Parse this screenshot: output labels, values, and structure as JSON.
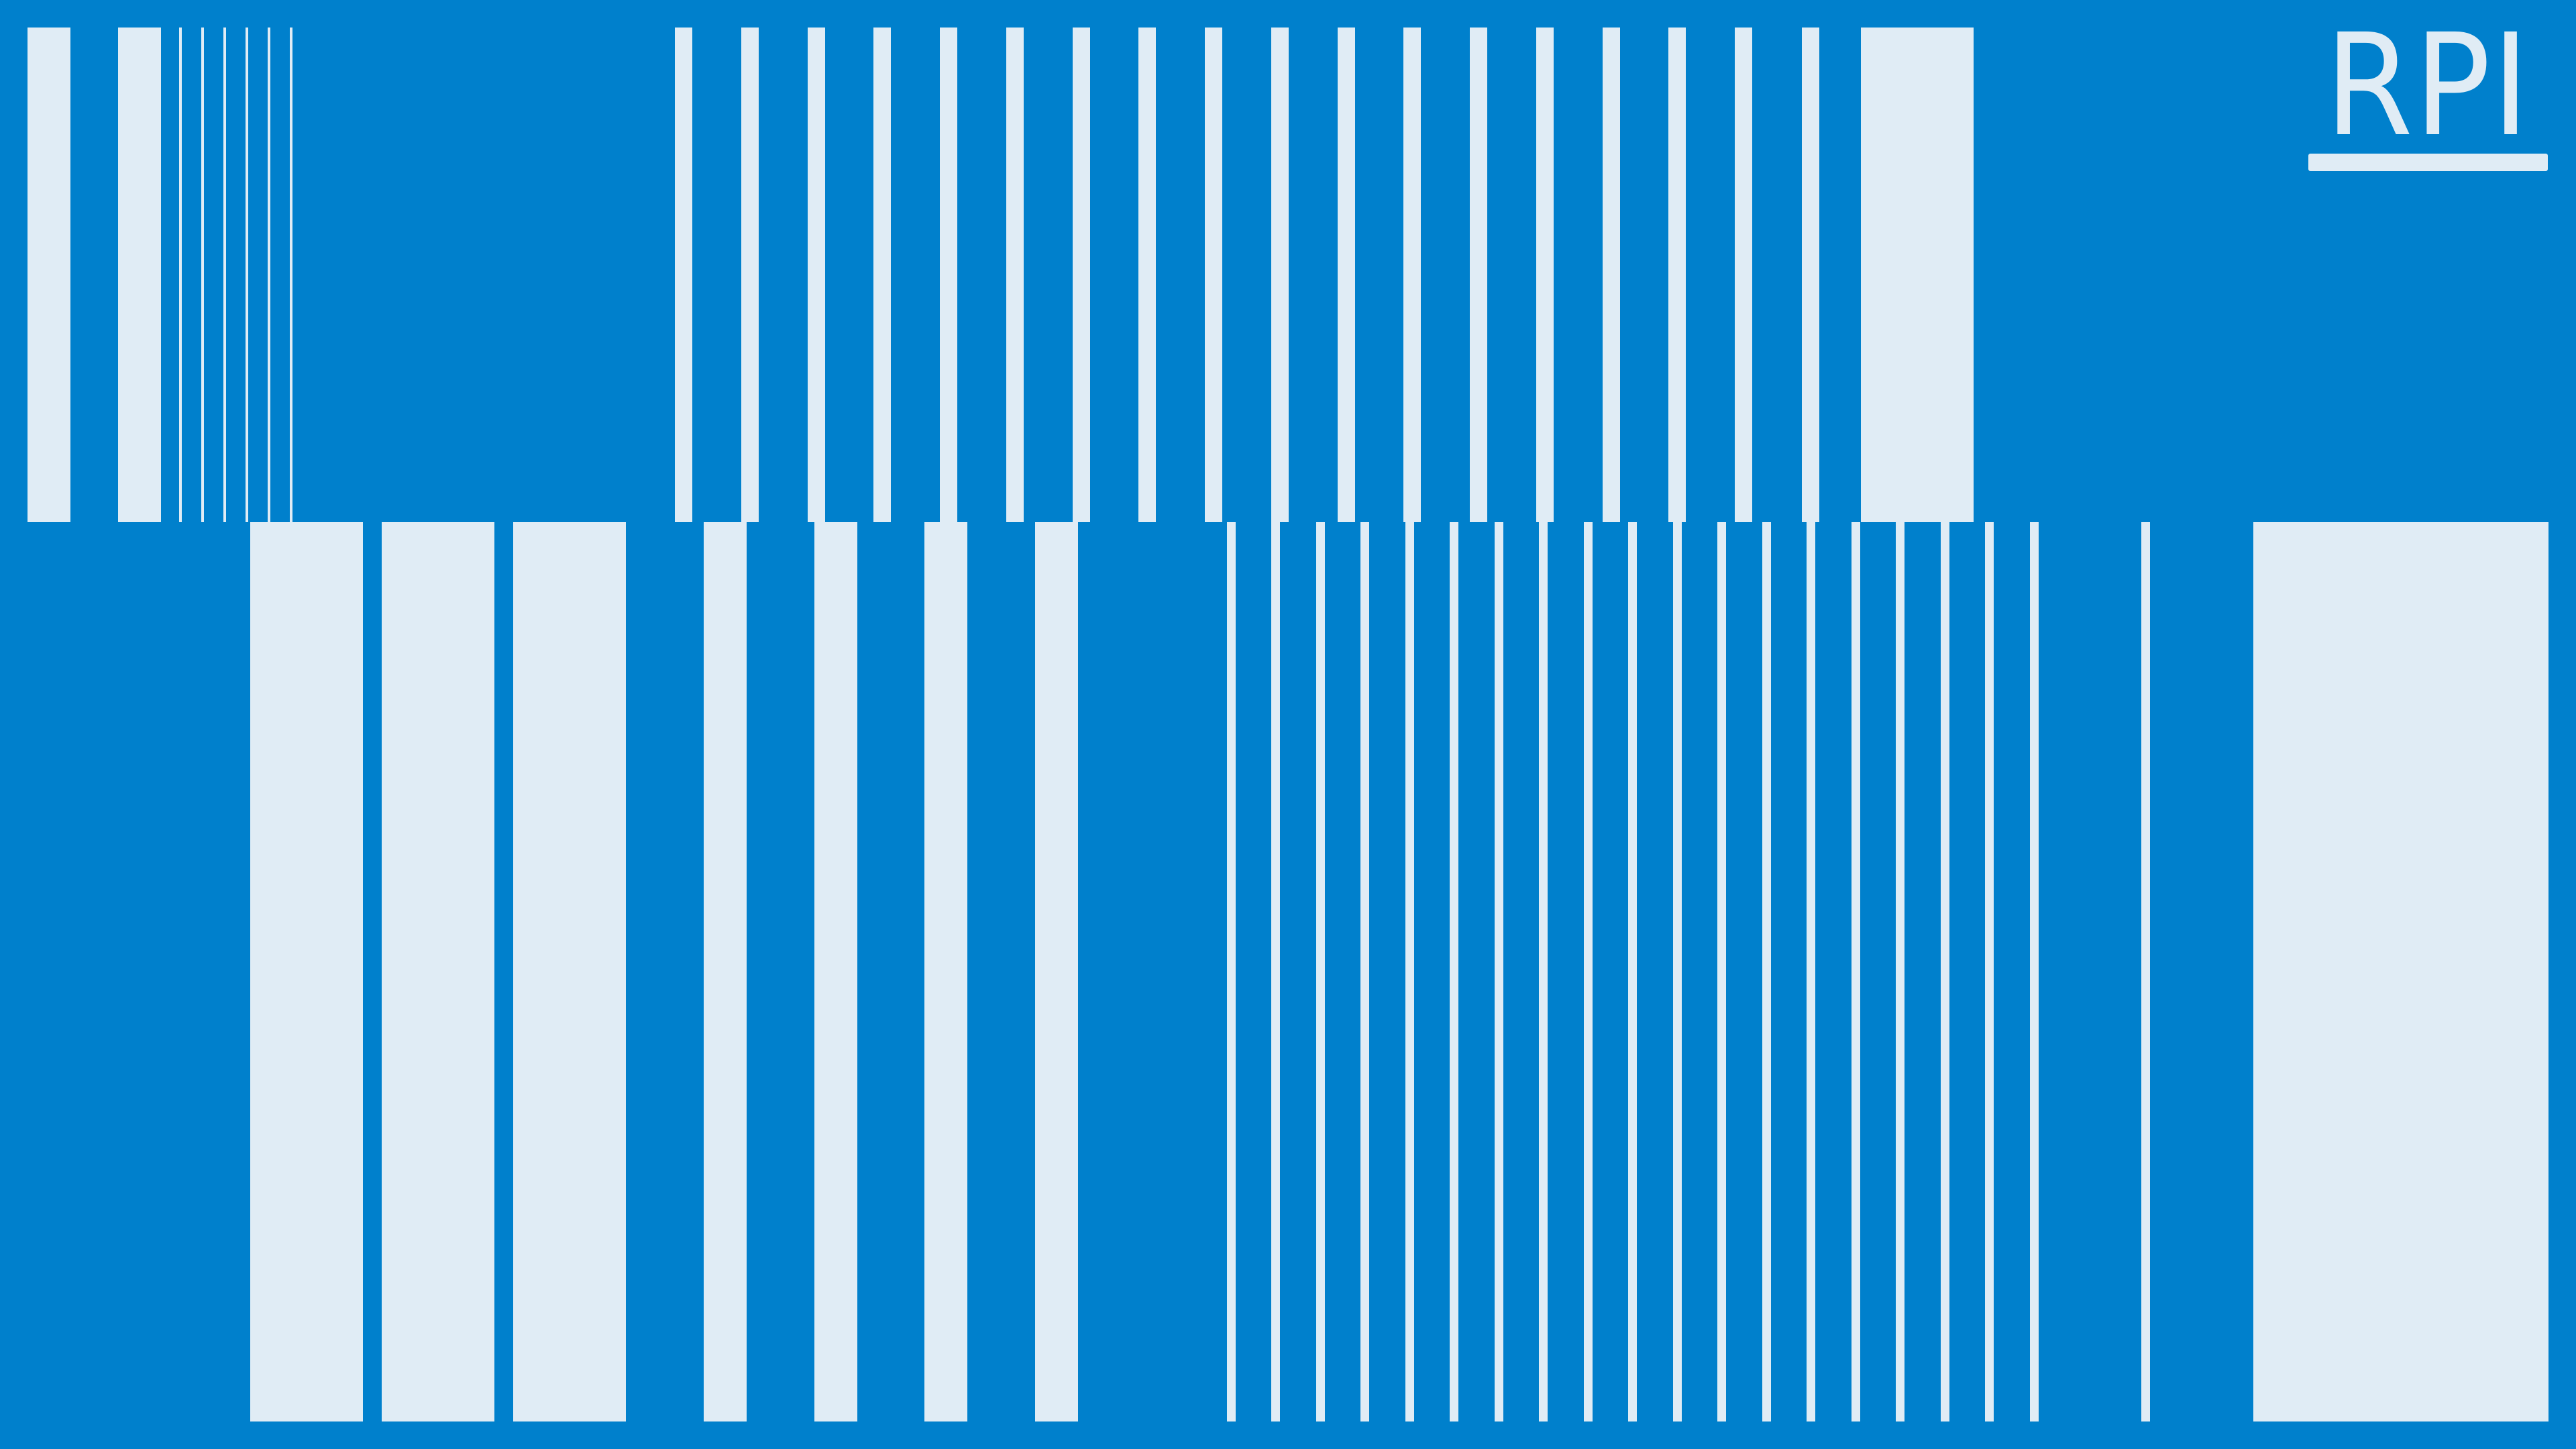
{
  "logo": {
    "text": "RPI"
  },
  "colors": {
    "background": "#0080cc",
    "bars": "#e0ecf5"
  }
}
